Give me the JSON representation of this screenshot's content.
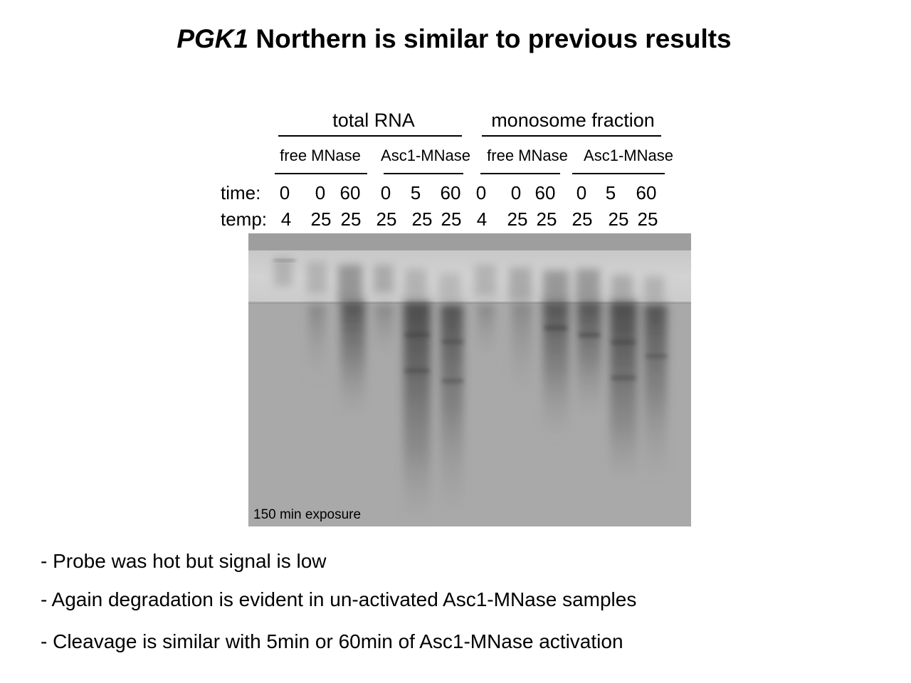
{
  "slide": {
    "title_italic": "PGK1",
    "title_rest": " Northern is similar to previous results"
  },
  "groups": [
    "total RNA",
    "monosome fraction"
  ],
  "subgroups": [
    "free MNase",
    "Asc1-MNase",
    "free MNase",
    "Asc1-MNase"
  ],
  "rows": {
    "time_label": "time:",
    "temp_label": "temp:",
    "time": [
      "0",
      "0",
      "60",
      "0",
      "5",
      "60",
      "0",
      "0",
      "60",
      "0",
      "5",
      "60"
    ],
    "temp": [
      "4",
      "25",
      "25",
      "25",
      "25",
      "25",
      "4",
      "25",
      "25",
      "25",
      "25",
      "25"
    ]
  },
  "gel": {
    "caption": "150 min exposure"
  },
  "bullets": [
    "- Probe was hot but signal is low",
    "- Again degradation is evident in un-activated Asc1-MNase samples",
    "- Cleavage is similar with 5min or 60min of Asc1-MNase activation"
  ]
}
